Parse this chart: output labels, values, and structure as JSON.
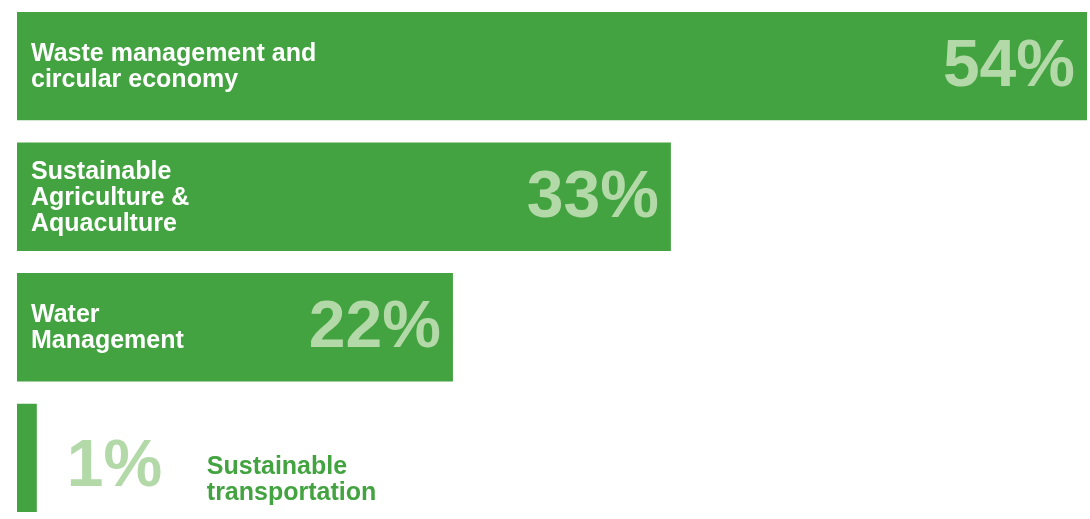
{
  "chart_data": {
    "type": "bar",
    "orientation": "horizontal",
    "categories": [
      "Waste management and circular economy",
      "Sustainable Agriculture & Aquaculture",
      "Water Management",
      "Sustainable transportation"
    ],
    "values": [
      54,
      33,
      22,
      1
    ],
    "value_labels": [
      "54%",
      "33%",
      "22%",
      "1%"
    ],
    "color": "#43a340"
  }
}
